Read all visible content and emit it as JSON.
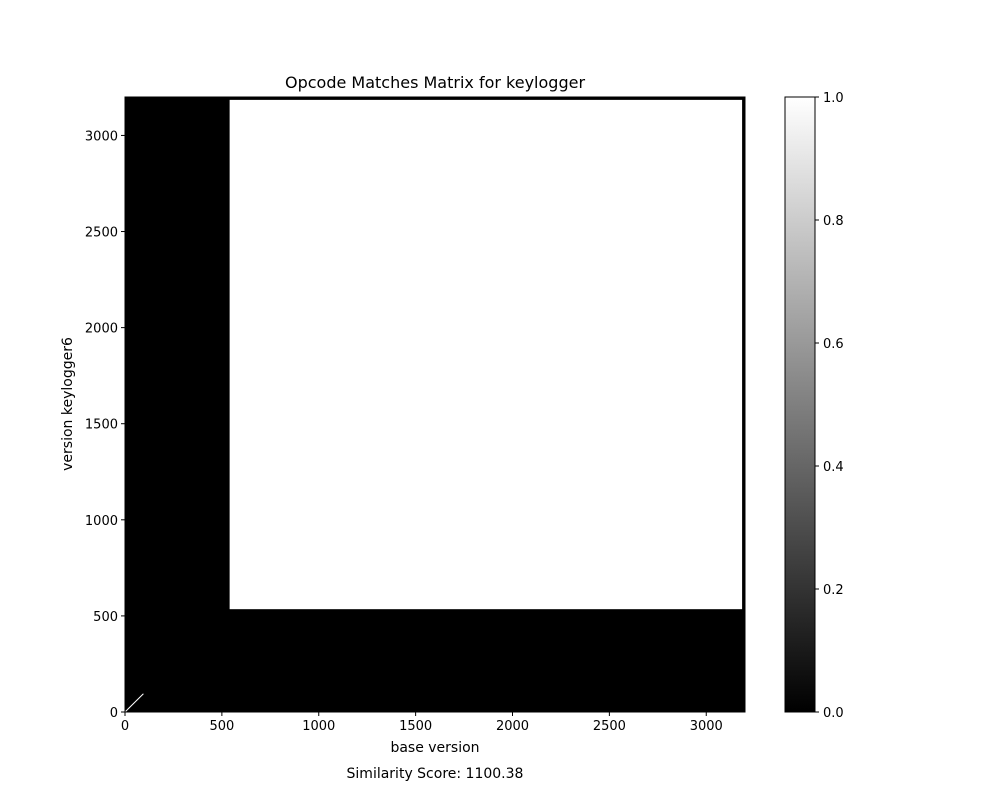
{
  "chart_data": {
    "type": "heatmap",
    "title": "Opcode Matches Matrix for keylogger",
    "xlabel": "base version",
    "ylabel": "version keylogger6",
    "xlim": [
      0,
      3200
    ],
    "ylim": [
      0,
      3200
    ],
    "x_ticks": [
      0,
      500,
      1000,
      1500,
      2000,
      2500,
      3000
    ],
    "y_ticks": [
      0,
      500,
      1000,
      1500,
      2000,
      2500,
      3000
    ],
    "value_range": [
      0.0,
      1.0
    ],
    "colormap": "grayscale (0 = black, 1 = white)",
    "colorbar_ticks": [
      "0.0",
      "0.2",
      "0.4",
      "0.6",
      "0.8",
      "1.0"
    ],
    "match_regions": [
      {
        "x": [
          540,
          3185
        ],
        "y": [
          535,
          3185
        ],
        "value": 1.0
      }
    ],
    "diagonal_match": {
      "from": [
        0,
        0
      ],
      "to": [
        95,
        95
      ],
      "value": 1.0
    },
    "footer": "Similarity Score: 1100.38"
  }
}
